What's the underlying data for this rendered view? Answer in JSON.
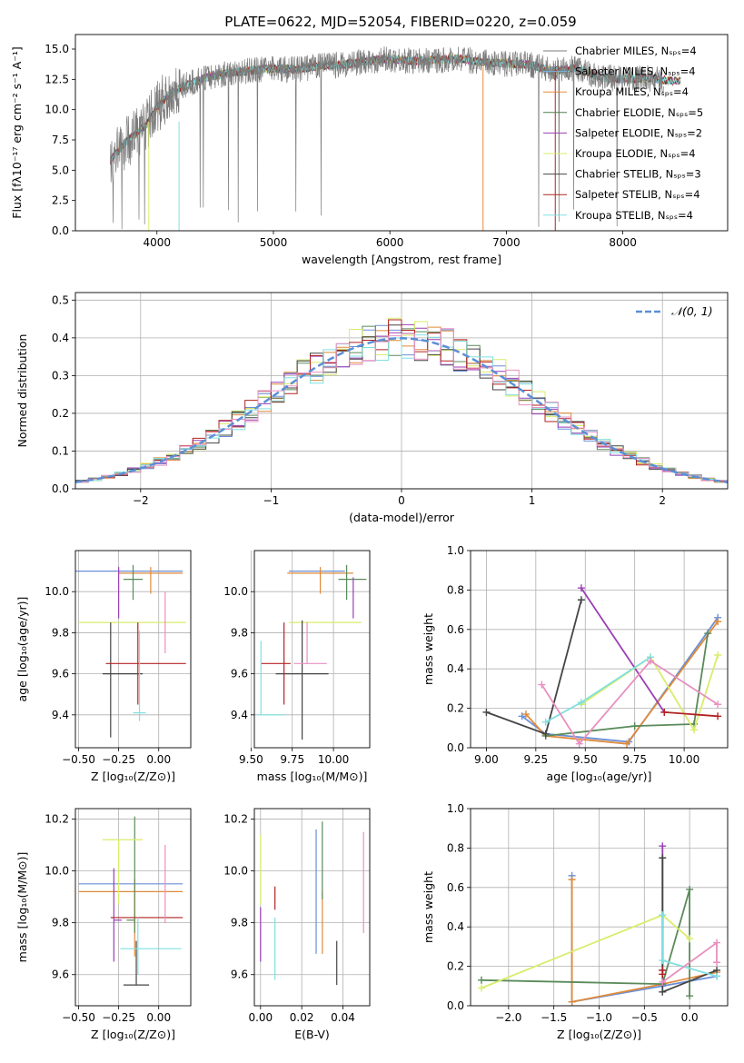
{
  "page_title": "PLATE=0622, MJD=52054, FIBERID=0220, z=0.059",
  "series_names": [
    "Chabrier MILES, Nₛₚₛ=4",
    "Salpeter MILES, Nₛₚₛ=4",
    "Kroupa MILES, Nₛₚₛ=4",
    "Chabrier ELODIE, Nₛₚₛ=5",
    "Salpeter ELODIE, Nₛₚₛ=2",
    "Kroupa ELODIE, Nₛₚₛ=4",
    "Chabrier STELIB, Nₛₚₛ=3",
    "Salpeter STELIB, Nₛₚₛ=4",
    "Kroupa STELIB, Nₛₚₛ=4"
  ],
  "colors": [
    "#7b7b7b",
    "#7ab0e0",
    "#e8883a",
    "#4f7f4f",
    "#9a3fb5",
    "#d9ec6a",
    "#444444",
    "#b22222",
    "#80e0e0"
  ],
  "model_colors": [
    "#6a8fd6",
    "#e08a3a",
    "#5a8a5a",
    "#9a3fb5",
    "#d9ec6a",
    "#444444",
    "#b22222",
    "#80e0e0",
    "#e890c0"
  ],
  "chart_data": [
    {
      "id": "spectrum",
      "type": "line",
      "title": "PLATE=0622, MJD=52054, FIBERID=0220, z=0.059",
      "xlabel": "wavelength [Angstrom, rest frame]",
      "ylabel": "Flux [fλ10⁻¹⁷ erg cm⁻² s⁻¹ A⁻¹]",
      "xlim": [
        3300,
        8900
      ],
      "ylim": [
        0,
        16.2
      ],
      "xticks": [
        4000,
        5000,
        6000,
        7000,
        8000
      ],
      "yticks": [
        0.0,
        2.5,
        5.0,
        7.5,
        10.0,
        12.5,
        15.0
      ],
      "continuum": {
        "x": [
          3600,
          3700,
          3800,
          3900,
          4000,
          4100,
          4200,
          4400,
          4600,
          4800,
          5000,
          5200,
          5400,
          5600,
          5800,
          6000,
          6200,
          6400,
          6600,
          6800,
          7000,
          7200,
          7400,
          7600,
          7800,
          8000,
          8200,
          8400
        ],
        "y": [
          5.8,
          7.0,
          7.9,
          8.6,
          10.2,
          11.2,
          11.8,
          12.6,
          13.0,
          13.2,
          13.4,
          13.3,
          13.6,
          13.7,
          14.0,
          14.2,
          14.0,
          14.1,
          14.2,
          13.9,
          13.8,
          13.7,
          13.2,
          13.4,
          12.7,
          12.5,
          12.6,
          12.4
        ]
      }
    },
    {
      "id": "residuals",
      "type": "line",
      "xlabel": "(data-model)/error",
      "ylabel": "Normed distribution",
      "legend": "𝒩(0, 1)",
      "xlim": [
        -2.5,
        2.5
      ],
      "ylim": [
        0,
        0.52
      ],
      "xticks": [
        -2,
        -1,
        0,
        1,
        2
      ],
      "yticks": [
        0.0,
        0.1,
        0.2,
        0.3,
        0.4,
        0.5
      ],
      "bin_width": 0.1
    },
    {
      "id": "age_vs_Z",
      "type": "scatter",
      "xlabel": "Z [log₁₀(Z/Z⊙)]",
      "ylabel": "age  [log₁₀(age/yr)]",
      "xlim": [
        -0.52,
        0.2
      ],
      "ylim": [
        9.24,
        10.2
      ],
      "xticks": [
        -0.5,
        -0.25,
        0.0
      ],
      "yticks": [
        9.4,
        9.6,
        9.8,
        10.0
      ],
      "points": [
        {
          "x": -0.12,
          "y": 10.1,
          "xerr": [
            0.47,
            0.27
          ],
          "yerr": [
            0.0,
            0.0
          ]
        },
        {
          "x": -0.05,
          "y": 10.09,
          "xerr": [
            0.2,
            0.2
          ],
          "yerr": [
            0.1,
            0.03
          ]
        },
        {
          "x": -0.16,
          "y": 10.06,
          "xerr": [
            0.06,
            0.06
          ],
          "yerr": [
            0.1,
            0.07
          ]
        },
        {
          "x": -0.25,
          "y": 10.07,
          "xerr": [
            0.0,
            0.0
          ],
          "yerr": [
            0.2,
            0.05
          ]
        },
        {
          "x": -0.18,
          "y": 9.85,
          "xerr": [
            0.32,
            0.35
          ],
          "yerr": [
            0.0,
            0.0
          ]
        },
        {
          "x": -0.3,
          "y": 9.6,
          "xerr": [
            0.05,
            0.2
          ],
          "yerr": [
            0.31,
            0.25
          ]
        },
        {
          "x": -0.13,
          "y": 9.65,
          "xerr": [
            0.2,
            0.3
          ],
          "yerr": [
            0.2,
            0.2
          ]
        },
        {
          "x": -0.12,
          "y": 9.41,
          "xerr": [
            0.04,
            0.04
          ],
          "yerr": [
            0.04,
            0.4
          ]
        },
        {
          "x": 0.04,
          "y": 9.85,
          "xerr": [
            0.0,
            0.0
          ],
          "yerr": [
            0.15,
            0.15
          ]
        }
      ]
    },
    {
      "id": "age_vs_mass",
      "type": "scatter",
      "xlabel": "mass [log₁₀(M/M⊙)]",
      "ylabel": "",
      "xlim": [
        9.52,
        10.22
      ],
      "ylim": [
        9.24,
        10.2
      ],
      "xticks": [
        9.5,
        9.75,
        10.0
      ],
      "yticks": [
        9.4,
        9.6,
        9.8,
        10.0
      ],
      "points": [
        {
          "x": 9.95,
          "y": 10.1,
          "xerr": [
            0.22,
            0.12
          ],
          "yerr": [
            0.0,
            0.0
          ]
        },
        {
          "x": 9.92,
          "y": 10.09,
          "xerr": [
            0.2,
            0.2
          ],
          "yerr": [
            0.1,
            0.03
          ]
        },
        {
          "x": 10.08,
          "y": 10.06,
          "xerr": [
            0.05,
            0.12
          ],
          "yerr": [
            0.1,
            0.07
          ]
        },
        {
          "x": 10.12,
          "y": 10.02,
          "xerr": [
            0.0,
            0.0
          ],
          "yerr": [
            0.15,
            0.05
          ]
        },
        {
          "x": 9.95,
          "y": 9.85,
          "xerr": [
            0.22,
            0.22
          ],
          "yerr": [
            0.0,
            0.0
          ]
        },
        {
          "x": 9.81,
          "y": 9.6,
          "xerr": [
            0.16,
            0.16
          ],
          "yerr": [
            0.32,
            0.26
          ]
        },
        {
          "x": 9.7,
          "y": 9.65,
          "xerr": [
            0.14,
            0.04
          ],
          "yerr": [
            0.2,
            0.2
          ]
        },
        {
          "x": 9.56,
          "y": 9.4,
          "xerr": [
            0.02,
            0.14
          ],
          "yerr": [
            0.0,
            0.36
          ]
        },
        {
          "x": 9.84,
          "y": 9.65,
          "xerr": [
            0.08,
            0.12
          ],
          "yerr": [
            0.0,
            0.2
          ]
        }
      ]
    },
    {
      "id": "mass_weight_vs_age",
      "type": "line",
      "xlabel": "age  [log₁₀(age/yr)]",
      "ylabel": "mass weight",
      "xlim": [
        8.92,
        10.22
      ],
      "ylim": [
        0,
        1
      ],
      "xticks": [
        9.0,
        9.25,
        9.5,
        9.75,
        10.0
      ],
      "yticks": [
        0.0,
        0.2,
        0.4,
        0.6,
        0.8,
        1.0
      ],
      "series": [
        {
          "x": [
            9.18,
            9.3,
            9.72,
            10.17
          ],
          "y": [
            0.16,
            0.07,
            0.03,
            0.66
          ]
        },
        {
          "x": [
            9.2,
            9.3,
            9.71,
            10.17
          ],
          "y": [
            0.17,
            0.06,
            0.02,
            0.64
          ]
        },
        {
          "x": [
            9.3,
            9.75,
            10.05,
            10.12
          ],
          "y": [
            0.06,
            0.11,
            0.12,
            0.58
          ]
        },
        {
          "x": [
            9.48,
            9.9
          ],
          "y": [
            0.81,
            0.18
          ]
        },
        {
          "x": [
            9.48,
            9.83,
            10.05,
            10.17
          ],
          "y": [
            0.22,
            0.46,
            0.09,
            0.47
          ]
        },
        {
          "x": [
            9.0,
            9.3,
            9.48
          ],
          "y": [
            0.18,
            0.07,
            0.75
          ]
        },
        {
          "x": [
            9.9,
            10.17
          ],
          "y": [
            0.18,
            0.16
          ]
        },
        {
          "x": [
            9.3,
            9.48,
            9.83
          ],
          "y": [
            0.13,
            0.23,
            0.46
          ]
        },
        {
          "x": [
            9.28,
            9.47,
            9.83,
            10.17
          ],
          "y": [
            0.32,
            0.02,
            0.44,
            0.22
          ]
        }
      ]
    },
    {
      "id": "mass_vs_Z",
      "type": "scatter",
      "xlabel": "Z [log₁₀(Z/Z⊙)]",
      "ylabel": "mass [log₁₀(M/M⊙)]",
      "xlim": [
        -0.52,
        0.2
      ],
      "ylim": [
        9.48,
        10.24
      ],
      "xticks": [
        -0.5,
        -0.25,
        0.0
      ],
      "yticks": [
        9.6,
        9.8,
        10.0,
        10.2
      ],
      "points": [
        {
          "x": -0.2,
          "y": 9.95,
          "xerr": [
            0.3,
            0.35
          ],
          "yerr": [
            0.0,
            0.0
          ]
        },
        {
          "x": -0.15,
          "y": 9.92,
          "xerr": [
            0.35,
            0.3
          ],
          "yerr": [
            0.25,
            0.05
          ]
        },
        {
          "x": -0.15,
          "y": 9.81,
          "xerr": [
            0.05,
            0.0
          ],
          "yerr": [
            0.05,
            0.4
          ]
        },
        {
          "x": -0.28,
          "y": 9.81,
          "xerr": [
            0.0,
            0.05
          ],
          "yerr": [
            0.16,
            0.2
          ]
        },
        {
          "x": -0.25,
          "y": 10.12,
          "xerr": [
            0.1,
            0.15
          ],
          "yerr": [
            0.25,
            0.0
          ]
        },
        {
          "x": -0.14,
          "y": 9.56,
          "xerr": [
            0.08,
            0.08
          ],
          "yerr": [
            0.0,
            0.17
          ]
        },
        {
          "x": -0.15,
          "y": 9.82,
          "xerr": [
            0.15,
            0.3
          ],
          "yerr": [
            0.0,
            0.0
          ]
        },
        {
          "x": -0.13,
          "y": 9.7,
          "xerr": [
            0.11,
            0.27
          ],
          "yerr": [
            0.1,
            0.12
          ]
        },
        {
          "x": 0.04,
          "y": 9.98,
          "xerr": [
            0.0,
            0.0
          ],
          "yerr": [
            0.18,
            0.12
          ]
        }
      ]
    },
    {
      "id": "mass_vs_EBV",
      "type": "scatter",
      "xlabel": "E(B-V)",
      "ylabel": "",
      "xlim": [
        -0.003,
        0.053
      ],
      "ylim": [
        9.48,
        10.24
      ],
      "xticks": [
        0.0,
        0.02,
        0.04
      ],
      "yticks": [
        9.6,
        9.8,
        10.0,
        10.2
      ],
      "points": [
        {
          "x": 0.027,
          "y": 9.95,
          "xerr": [
            0.0,
            0.0
          ],
          "yerr": [
            0.27,
            0.21
          ]
        },
        {
          "x": 0.03,
          "y": 9.92,
          "xerr": [
            0.0,
            0.0
          ],
          "yerr": [
            0.24,
            0.0
          ]
        },
        {
          "x": 0.03,
          "y": 10.04,
          "xerr": [
            0.0,
            0.0
          ],
          "yerr": [
            0.15,
            0.15
          ]
        },
        {
          "x": 0.0,
          "y": 9.81,
          "xerr": [
            0.0,
            0.0
          ],
          "yerr": [
            0.16,
            0.05
          ]
        },
        {
          "x": 0.0,
          "y": 10.12,
          "xerr": [
            0.0,
            0.0
          ],
          "yerr": [
            0.25,
            0.02
          ]
        },
        {
          "x": 0.037,
          "y": 9.63,
          "xerr": [
            0.0,
            0.0
          ],
          "yerr": [
            0.07,
            0.1
          ]
        },
        {
          "x": 0.007,
          "y": 9.85,
          "xerr": [
            0.0,
            0.0
          ],
          "yerr": [
            0.0,
            0.09
          ]
        },
        {
          "x": 0.007,
          "y": 9.7,
          "xerr": [
            0.0,
            0.0
          ],
          "yerr": [
            0.12,
            0.12
          ]
        },
        {
          "x": 0.05,
          "y": 9.96,
          "xerr": [
            0.0,
            0.0
          ],
          "yerr": [
            0.2,
            0.19
          ]
        }
      ]
    },
    {
      "id": "mass_weight_vs_Z",
      "type": "line",
      "xlabel": "Z [log₁₀(Z/Z⊙)]",
      "ylabel": "mass weight",
      "xlim": [
        -2.42,
        0.42
      ],
      "ylim": [
        0,
        1
      ],
      "xticks": [
        -2.0,
        -1.5,
        -1.0,
        -0.5,
        0.0
      ],
      "yticks": [
        0.0,
        0.2,
        0.4,
        0.6,
        0.8,
        1.0
      ],
      "series": [
        {
          "x": [
            -1.3,
            -1.3,
            -0.3,
            0.3
          ],
          "y": [
            0.66,
            0.02,
            0.1,
            0.15
          ]
        },
        {
          "x": [
            -1.3,
            -1.3,
            -0.3,
            0.3
          ],
          "y": [
            0.64,
            0.02,
            0.11,
            0.17
          ]
        },
        {
          "x": [
            -2.3,
            -0.3,
            0.0,
            0.0
          ],
          "y": [
            0.13,
            0.11,
            0.59,
            0.05
          ]
        },
        {
          "x": [
            -0.3,
            -0.3
          ],
          "y": [
            0.81,
            0.18
          ]
        },
        {
          "x": [
            -2.3,
            -0.3,
            0.0
          ],
          "y": [
            0.09,
            0.46,
            0.34
          ]
        },
        {
          "x": [
            -0.3,
            -0.3,
            0.3
          ],
          "y": [
            0.75,
            0.07,
            0.18
          ]
        },
        {
          "x": [
            -0.3,
            -0.3
          ],
          "y": [
            0.18,
            0.16
          ]
        },
        {
          "x": [
            -0.3,
            -0.3,
            0.3
          ],
          "y": [
            0.46,
            0.23,
            0.15
          ]
        },
        {
          "x": [
            -0.3,
            0.3,
            0.3
          ],
          "y": [
            0.12,
            0.32,
            0.22
          ]
        }
      ]
    }
  ]
}
